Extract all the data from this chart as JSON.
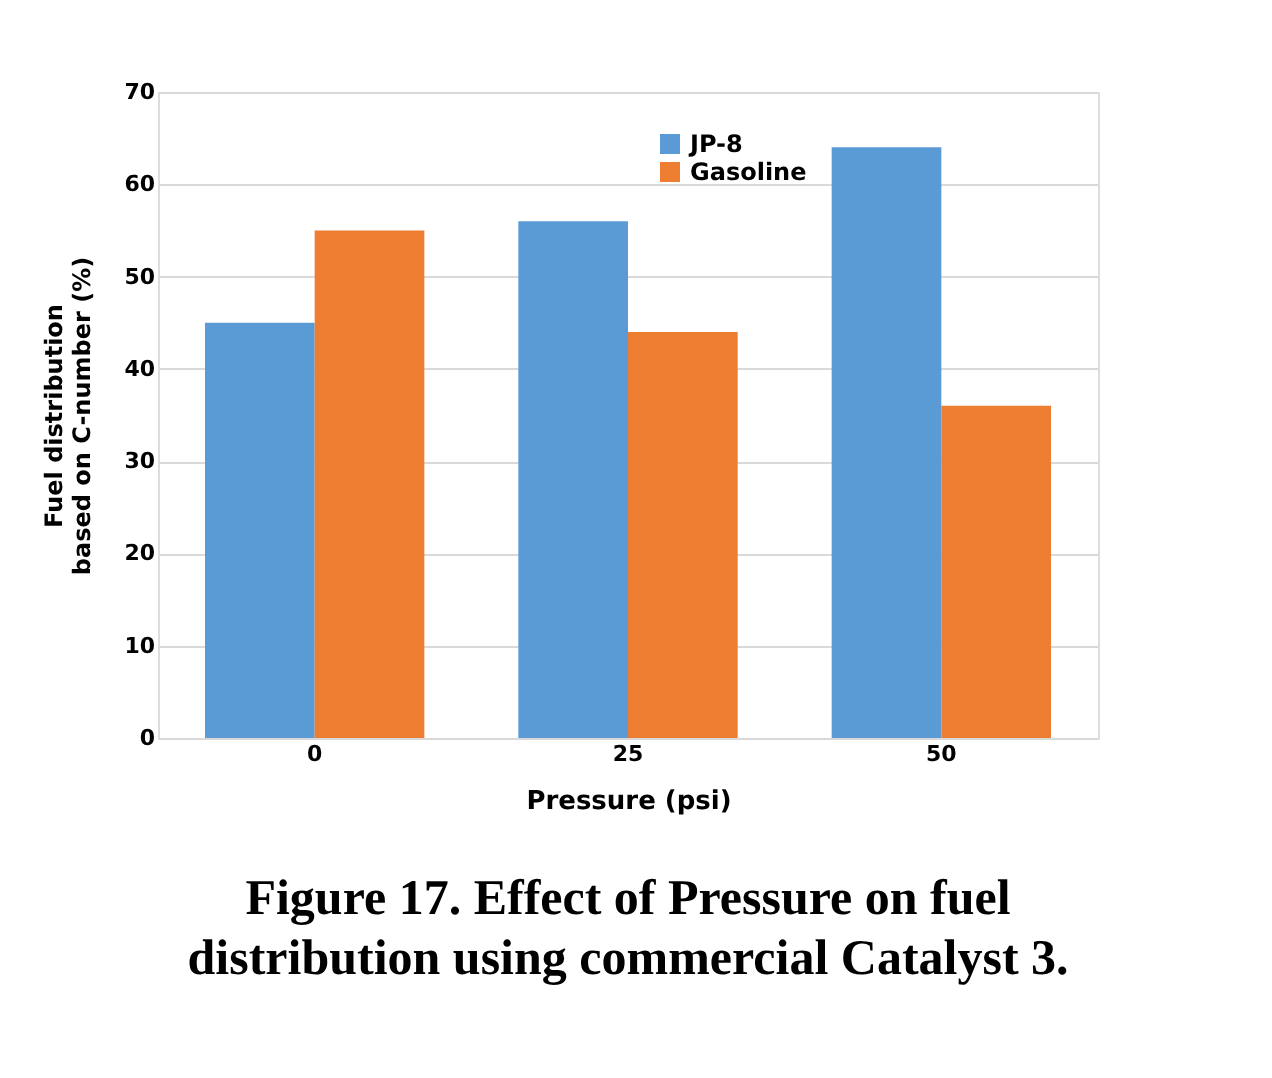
{
  "chart_data": {
    "type": "bar",
    "categories": [
      "0",
      "25",
      "50"
    ],
    "series": [
      {
        "name": "JP-8",
        "color": "#5b9bd5",
        "values": [
          45,
          56,
          64
        ]
      },
      {
        "name": "Gasoline",
        "color": "#ed7d31",
        "values": [
          55,
          44,
          36
        ]
      }
    ],
    "xlabel": "Pressure (psi)",
    "ylabel": "Fuel distribution based on C-number (%)",
    "ylim": [
      0,
      70
    ],
    "yticks": [
      0,
      10,
      20,
      30,
      40,
      50,
      60,
      70
    ],
    "grid": "y",
    "legend": "top right",
    "annotations": [
      "Figure 17. Effect of Pressure on fuel distribution using commercial Catalyst 3."
    ]
  }
}
